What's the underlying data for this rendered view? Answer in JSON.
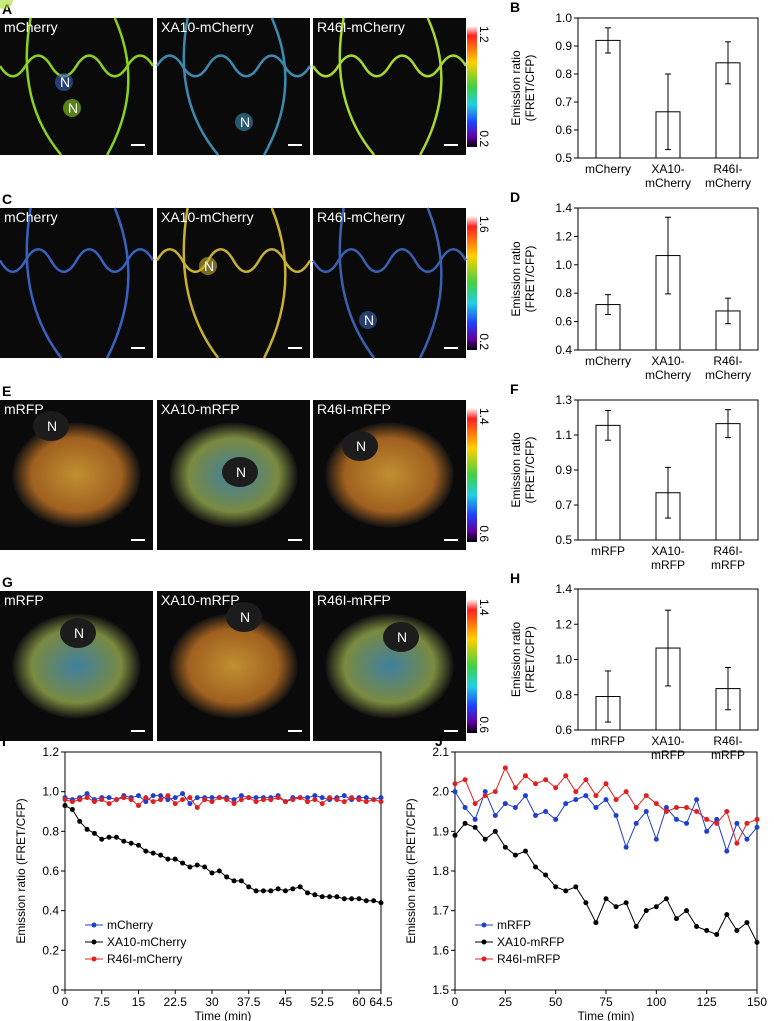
{
  "image_rows": [
    {
      "letter": "A",
      "labels": [
        "mCherry",
        "XA10-mCherry",
        "R46I-mCherry"
      ],
      "colorbar": [
        0.2,
        1.2
      ]
    },
    {
      "letter": "C",
      "labels": [
        "mCherry",
        "XA10-mCherry",
        "R46I-mCherry"
      ],
      "colorbar": [
        0.2,
        1.6
      ]
    },
    {
      "letter": "E",
      "labels": [
        "mRFP",
        "XA10-mRFP",
        "R46I-mRFP"
      ],
      "colorbar": [
        0.6,
        1.4
      ]
    },
    {
      "letter": "G",
      "labels": [
        "mRFP",
        "XA10-mRFP",
        "R46I-mRFP"
      ],
      "colorbar": [
        0.6,
        1.4
      ]
    }
  ],
  "nucleus_label": "N",
  "chart_data": [
    {
      "type": "bar",
      "label": "B",
      "ylabel": "Emission ratio\n(FRET/CFP)",
      "categories": [
        "mCherry",
        "XA10-\nmCherry",
        "R46I-\nmCherry"
      ],
      "values": [
        0.92,
        0.665,
        0.84
      ],
      "errors": [
        0.045,
        0.135,
        0.075
      ],
      "ylim": [
        0.5,
        1.0
      ],
      "yticks": [
        0.5,
        0.6,
        0.7,
        0.8,
        0.9,
        {
          "value": 1,
          "label": "1.0"
        }
      ]
    },
    {
      "type": "bar",
      "label": "D",
      "ylabel": "Emission ratio\n(FRET/CFP)",
      "categories": [
        "mCherry",
        "XA10-\nmCherry",
        "R46I-\nmCherry"
      ],
      "values": [
        0.72,
        1.065,
        0.675
      ],
      "errors": [
        0.07,
        0.27,
        0.09
      ],
      "ylim": [
        0.4,
        1.4
      ],
      "yticks": [
        0.4,
        0.6,
        0.8,
        {
          "value": 1,
          "label": "1.0"
        },
        1.2,
        1.4
      ]
    },
    {
      "type": "bar",
      "label": "F",
      "ylabel": "Emission ratio\n(FRET/CFP)",
      "categories": [
        "mRFP",
        "XA10-\nmRFP",
        "R46I-\nmRFP"
      ],
      "values": [
        1.155,
        0.77,
        1.165
      ],
      "errors": [
        0.085,
        0.145,
        0.08
      ],
      "ylim": [
        0.5,
        1.3
      ],
      "yticks": [
        0.5,
        0.7,
        0.9,
        1.1,
        1.3
      ]
    },
    {
      "type": "bar",
      "label": "H",
      "ylabel": "Emission ratio\n(FRET/CFP)",
      "categories": [
        "mRFP",
        "XA10-\nmRFP",
        "R46I-\nmRFP"
      ],
      "values": [
        0.79,
        1.065,
        0.835
      ],
      "errors": [
        0.145,
        0.215,
        0.12
      ],
      "ylim": [
        0.6,
        1.4
      ],
      "yticks": [
        0.6,
        0.8,
        {
          "value": 1,
          "label": "1.0"
        },
        1.2,
        1.4
      ]
    },
    {
      "type": "line",
      "label": "I",
      "ylabel": "Emission ratio (FRET/CFP)",
      "xlabel": "Time (min)",
      "legend": "lower left",
      "x": [
        0,
        1.5,
        3,
        4.5,
        6,
        7.5,
        9,
        10.5,
        12,
        13.5,
        15,
        16.5,
        18,
        19.5,
        21,
        22.5,
        24,
        25.5,
        27,
        28.5,
        30,
        31.5,
        33,
        34.5,
        36,
        37.5,
        39,
        40.5,
        42,
        43.5,
        45,
        46.5,
        48,
        49.5,
        51,
        52.5,
        54,
        55.5,
        57,
        58.5,
        60,
        61.5,
        63,
        64.5
      ],
      "series": [
        {
          "name": "mCherry",
          "color": "#1f3fd0",
          "values": [
            0.97,
            0.96,
            0.97,
            0.99,
            0.96,
            0.97,
            0.97,
            0.96,
            0.98,
            0.97,
            0.98,
            0.95,
            0.98,
            0.98,
            0.96,
            0.97,
            0.99,
            0.94,
            0.97,
            0.97,
            0.97,
            0.97,
            0.97,
            0.96,
            0.98,
            0.97,
            0.97,
            0.97,
            0.97,
            0.98,
            0.95,
            0.97,
            0.97,
            0.97,
            0.98,
            0.97,
            0.96,
            0.97,
            0.98,
            0.96,
            0.97,
            0.97,
            0.96,
            0.97
          ]
        },
        {
          "name": "XA10-mCherry",
          "color": "#000000",
          "values": [
            0.93,
            0.91,
            0.85,
            0.81,
            0.79,
            0.76,
            0.77,
            0.77,
            0.75,
            0.74,
            0.73,
            0.7,
            0.69,
            0.68,
            0.66,
            0.66,
            0.64,
            0.62,
            0.63,
            0.62,
            0.59,
            0.6,
            0.57,
            0.55,
            0.55,
            0.52,
            0.5,
            0.5,
            0.5,
            0.51,
            0.5,
            0.51,
            0.52,
            0.49,
            0.48,
            0.47,
            0.47,
            0.47,
            0.46,
            0.46,
            0.46,
            0.45,
            0.45,
            0.44
          ]
        },
        {
          "name": "R46I-mCherry",
          "color": "#e02020",
          "values": [
            0.96,
            0.95,
            0.96,
            0.97,
            0.95,
            0.96,
            0.94,
            0.96,
            0.97,
            0.96,
            0.93,
            0.97,
            0.95,
            0.96,
            0.98,
            0.94,
            0.96,
            0.97,
            0.92,
            0.96,
            0.95,
            0.97,
            0.96,
            0.94,
            0.96,
            0.97,
            0.95,
            0.96,
            0.96,
            0.97,
            0.95,
            0.96,
            0.97,
            0.95,
            0.96,
            0.94,
            0.97,
            0.96,
            0.95,
            0.97,
            0.96,
            0.95,
            0.96,
            0.95
          ]
        }
      ],
      "xlim": [
        0,
        64.5
      ],
      "xticks": [
        0,
        7.5,
        15,
        22.5,
        30,
        37.5,
        45,
        52.5,
        60,
        64.5
      ],
      "ylim": [
        0,
        1.2
      ],
      "yticks": [
        0,
        0.2,
        0.4,
        0.6,
        0.8,
        {
          "value": 1,
          "label": "1.0"
        },
        1.2
      ]
    },
    {
      "type": "line",
      "label": "J",
      "ylabel": "Emission ratio (FRET/CFP)",
      "xlabel": "Time (min)",
      "legend": "lower left",
      "x": [
        0,
        5,
        10,
        15,
        20,
        25,
        30,
        35,
        40,
        45,
        50,
        55,
        60,
        65,
        70,
        75,
        80,
        85,
        90,
        95,
        100,
        105,
        110,
        115,
        120,
        125,
        130,
        135,
        140,
        145,
        150
      ],
      "series": [
        {
          "name": "mRFP",
          "color": "#1f3fd0",
          "values": [
            2.0,
            1.96,
            1.93,
            2.0,
            1.94,
            1.97,
            1.96,
            1.99,
            1.94,
            1.95,
            1.93,
            1.97,
            1.98,
            1.99,
            1.96,
            1.98,
            1.94,
            1.86,
            1.92,
            1.95,
            1.88,
            1.96,
            1.93,
            1.92,
            1.98,
            1.9,
            1.93,
            1.85,
            1.92,
            1.88,
            1.91
          ]
        },
        {
          "name": "XA10-mRFP",
          "color": "#000000",
          "values": [
            1.89,
            1.92,
            1.91,
            1.88,
            1.9,
            1.86,
            1.84,
            1.85,
            1.81,
            1.79,
            1.76,
            1.75,
            1.76,
            1.72,
            1.67,
            1.73,
            1.71,
            1.72,
            1.66,
            1.7,
            1.71,
            1.73,
            1.68,
            1.7,
            1.66,
            1.65,
            1.64,
            1.69,
            1.65,
            1.67,
            1.62
          ]
        },
        {
          "name": "R46I-mRFP",
          "color": "#e02020",
          "values": [
            2.02,
            2.03,
            1.97,
            1.99,
            2.0,
            2.06,
            2.01,
            2.04,
            2.02,
            2.03,
            2.01,
            2.04,
            2.0,
            2.03,
            1.99,
            2.02,
            1.98,
            2.0,
            1.96,
            1.99,
            1.97,
            1.95,
            1.96,
            1.96,
            1.95,
            1.93,
            1.92,
            1.95,
            1.87,
            1.92,
            1.93
          ]
        }
      ],
      "xlim": [
        0,
        150
      ],
      "xticks": [
        0,
        25,
        50,
        75,
        100,
        125,
        150
      ],
      "ylim": [
        1.5,
        2.1
      ],
      "yticks": [
        1.5,
        1.6,
        1.7,
        1.8,
        1.9,
        {
          "value": 2,
          "label": "2.0"
        },
        2.1
      ]
    }
  ]
}
